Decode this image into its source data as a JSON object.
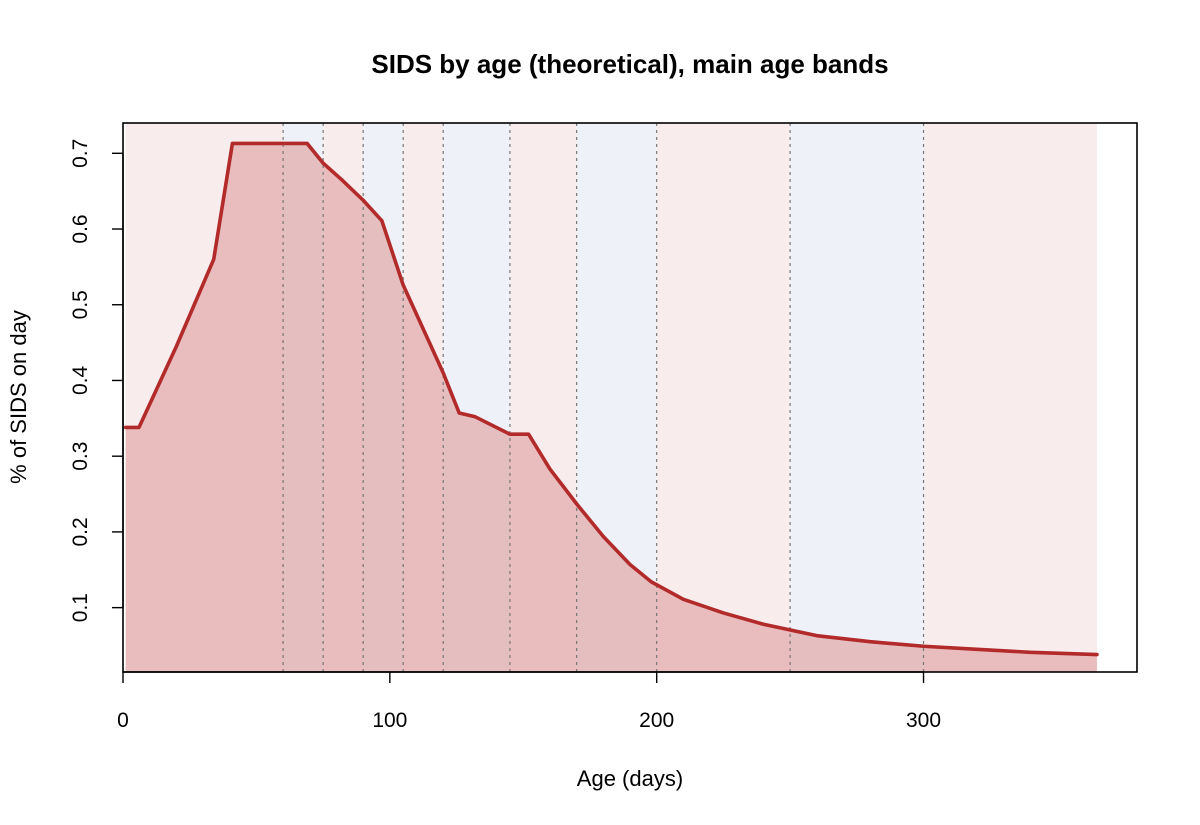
{
  "chart_data": {
    "type": "area",
    "title": "SIDS by age (theoretical), main age bands",
    "xlabel": "Age (days)",
    "ylabel": "% of SIDS on day",
    "xlim": [
      0,
      380
    ],
    "ylim": [
      0.015,
      0.74
    ],
    "xticks": [
      0,
      100,
      200,
      300
    ],
    "yticks": [
      0.1,
      0.2,
      0.3,
      0.4,
      0.5,
      0.6,
      0.7
    ],
    "grid": false,
    "band_colors": {
      "pink": "#f9ecec",
      "blue": "#eef1f7"
    },
    "bands": [
      {
        "from": 1,
        "to": 60,
        "color": "pink"
      },
      {
        "from": 60,
        "to": 75,
        "color": "blue"
      },
      {
        "from": 75,
        "to": 90,
        "color": "pink"
      },
      {
        "from": 90,
        "to": 105,
        "color": "blue"
      },
      {
        "from": 105,
        "to": 120,
        "color": "pink"
      },
      {
        "from": 120,
        "to": 145,
        "color": "blue"
      },
      {
        "from": 145,
        "to": 170,
        "color": "pink"
      },
      {
        "from": 170,
        "to": 200,
        "color": "blue"
      },
      {
        "from": 200,
        "to": 250,
        "color": "pink"
      },
      {
        "from": 250,
        "to": 300,
        "color": "blue"
      },
      {
        "from": 300,
        "to": 365,
        "color": "pink"
      }
    ],
    "band_boundaries": [
      60,
      75,
      90,
      105,
      120,
      145,
      170,
      200,
      250,
      300
    ],
    "series": [
      {
        "line_color": "#b22a2a",
        "fill_color": "#e2aaaa",
        "x": [
          1,
          6,
          20,
          34,
          41,
          50,
          60,
          69,
          75,
          82,
          90,
          97,
          105,
          120,
          126,
          132,
          145,
          152,
          160,
          170,
          180,
          190,
          198,
          210,
          225,
          240,
          260,
          280,
          300,
          320,
          340,
          365
        ],
        "y": [
          0.338,
          0.338,
          0.445,
          0.56,
          0.713,
          0.713,
          0.713,
          0.713,
          0.687,
          0.665,
          0.638,
          0.611,
          0.526,
          0.41,
          0.357,
          0.352,
          0.329,
          0.329,
          0.283,
          0.237,
          0.194,
          0.157,
          0.134,
          0.111,
          0.093,
          0.078,
          0.063,
          0.055,
          0.049,
          0.045,
          0.041,
          0.038
        ]
      }
    ]
  }
}
